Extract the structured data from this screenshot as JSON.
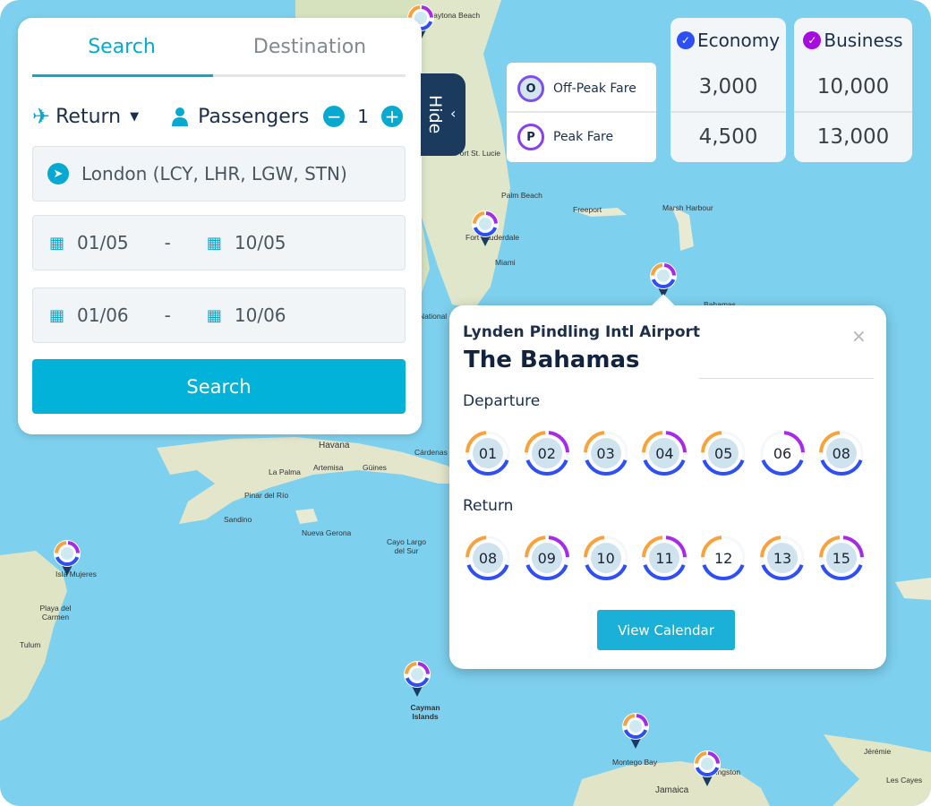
{
  "colors": {
    "accent": "#03b2d9",
    "navy": "#1a3a5e",
    "off_peak": "#f9a23c",
    "peak": "#a62ae8",
    "economy": "#2d4ff5",
    "business": "#a60ce0"
  },
  "search_panel": {
    "tabs": [
      {
        "label": "Search",
        "active": true
      },
      {
        "label": "Destination",
        "active": false
      }
    ],
    "trip_type": {
      "icon": "plane-icon",
      "value": "Return"
    },
    "passengers": {
      "icon": "person-icon",
      "label": "Passengers",
      "count": "1"
    },
    "origin": {
      "icon": "paper-plane-icon",
      "value": "London (LCY, LHR, LGW, STN)"
    },
    "date_ranges": [
      {
        "from": "01/05",
        "sep": "-",
        "to": "10/05"
      },
      {
        "from": "01/06",
        "sep": "-",
        "to": "10/06"
      }
    ],
    "search_button": "Search",
    "hide_label": "Hide"
  },
  "fares": {
    "columns": [
      {
        "label": "Economy",
        "color": "#2d4ff5"
      },
      {
        "label": "Business",
        "color": "#a60ce0"
      }
    ],
    "rows": [
      {
        "badge": "O",
        "label": "Off-Peak Fare",
        "values": [
          "3,000",
          "10,000"
        ]
      },
      {
        "badge": "P",
        "label": "Peak Fare",
        "values": [
          "4,500",
          "13,000"
        ]
      }
    ]
  },
  "popup": {
    "airport": "Lynden Pindling Intl Airport",
    "destination": "The Bahamas",
    "close": "×",
    "departure_label": "Departure",
    "departure_days": [
      {
        "day": "01",
        "off_peak": true,
        "peak": false,
        "economy": true,
        "filled": true
      },
      {
        "day": "02",
        "off_peak": true,
        "peak": true,
        "economy": true,
        "filled": true
      },
      {
        "day": "03",
        "off_peak": true,
        "peak": false,
        "economy": true,
        "filled": true
      },
      {
        "day": "04",
        "off_peak": true,
        "peak": true,
        "economy": true,
        "filled": true
      },
      {
        "day": "05",
        "off_peak": true,
        "peak": false,
        "economy": true,
        "filled": true
      },
      {
        "day": "06",
        "off_peak": false,
        "peak": true,
        "economy": true,
        "filled": false
      },
      {
        "day": "08",
        "off_peak": true,
        "peak": false,
        "economy": true,
        "filled": true
      }
    ],
    "return_label": "Return",
    "return_days": [
      {
        "day": "08",
        "off_peak": true,
        "peak": false,
        "economy": true,
        "filled": true
      },
      {
        "day": "09",
        "off_peak": true,
        "peak": true,
        "economy": true,
        "filled": true
      },
      {
        "day": "10",
        "off_peak": true,
        "peak": false,
        "economy": true,
        "filled": true
      },
      {
        "day": "11",
        "off_peak": true,
        "peak": true,
        "economy": true,
        "filled": true
      },
      {
        "day": "12",
        "off_peak": true,
        "peak": false,
        "economy": true,
        "filled": false
      },
      {
        "day": "13",
        "off_peak": true,
        "peak": false,
        "economy": true,
        "filled": true
      },
      {
        "day": "15",
        "off_peak": true,
        "peak": true,
        "economy": true,
        "filled": true
      }
    ],
    "view_calendar": "View Calendar"
  },
  "map": {
    "places": [
      "Daytona Beach",
      "Port St. Lucie",
      "Palm Beach",
      "Fort Lauderdale",
      "Miami",
      "Freeport",
      "Marsh Harbour",
      "Bahamas",
      "National",
      "Havana",
      "La Palma",
      "Artemisa",
      "Güines",
      "Cárdenas",
      "Pinar del Río",
      "Sandino",
      "Nueva Gerona",
      "Cayo Largo del Sur",
      "Isla Mujeres",
      "Playa del Carmen",
      "Tulum",
      "Cayman Islands",
      "Montego Bay",
      "Jamaica",
      "Kingston",
      "Jérémie",
      "Les Cayes"
    ]
  }
}
